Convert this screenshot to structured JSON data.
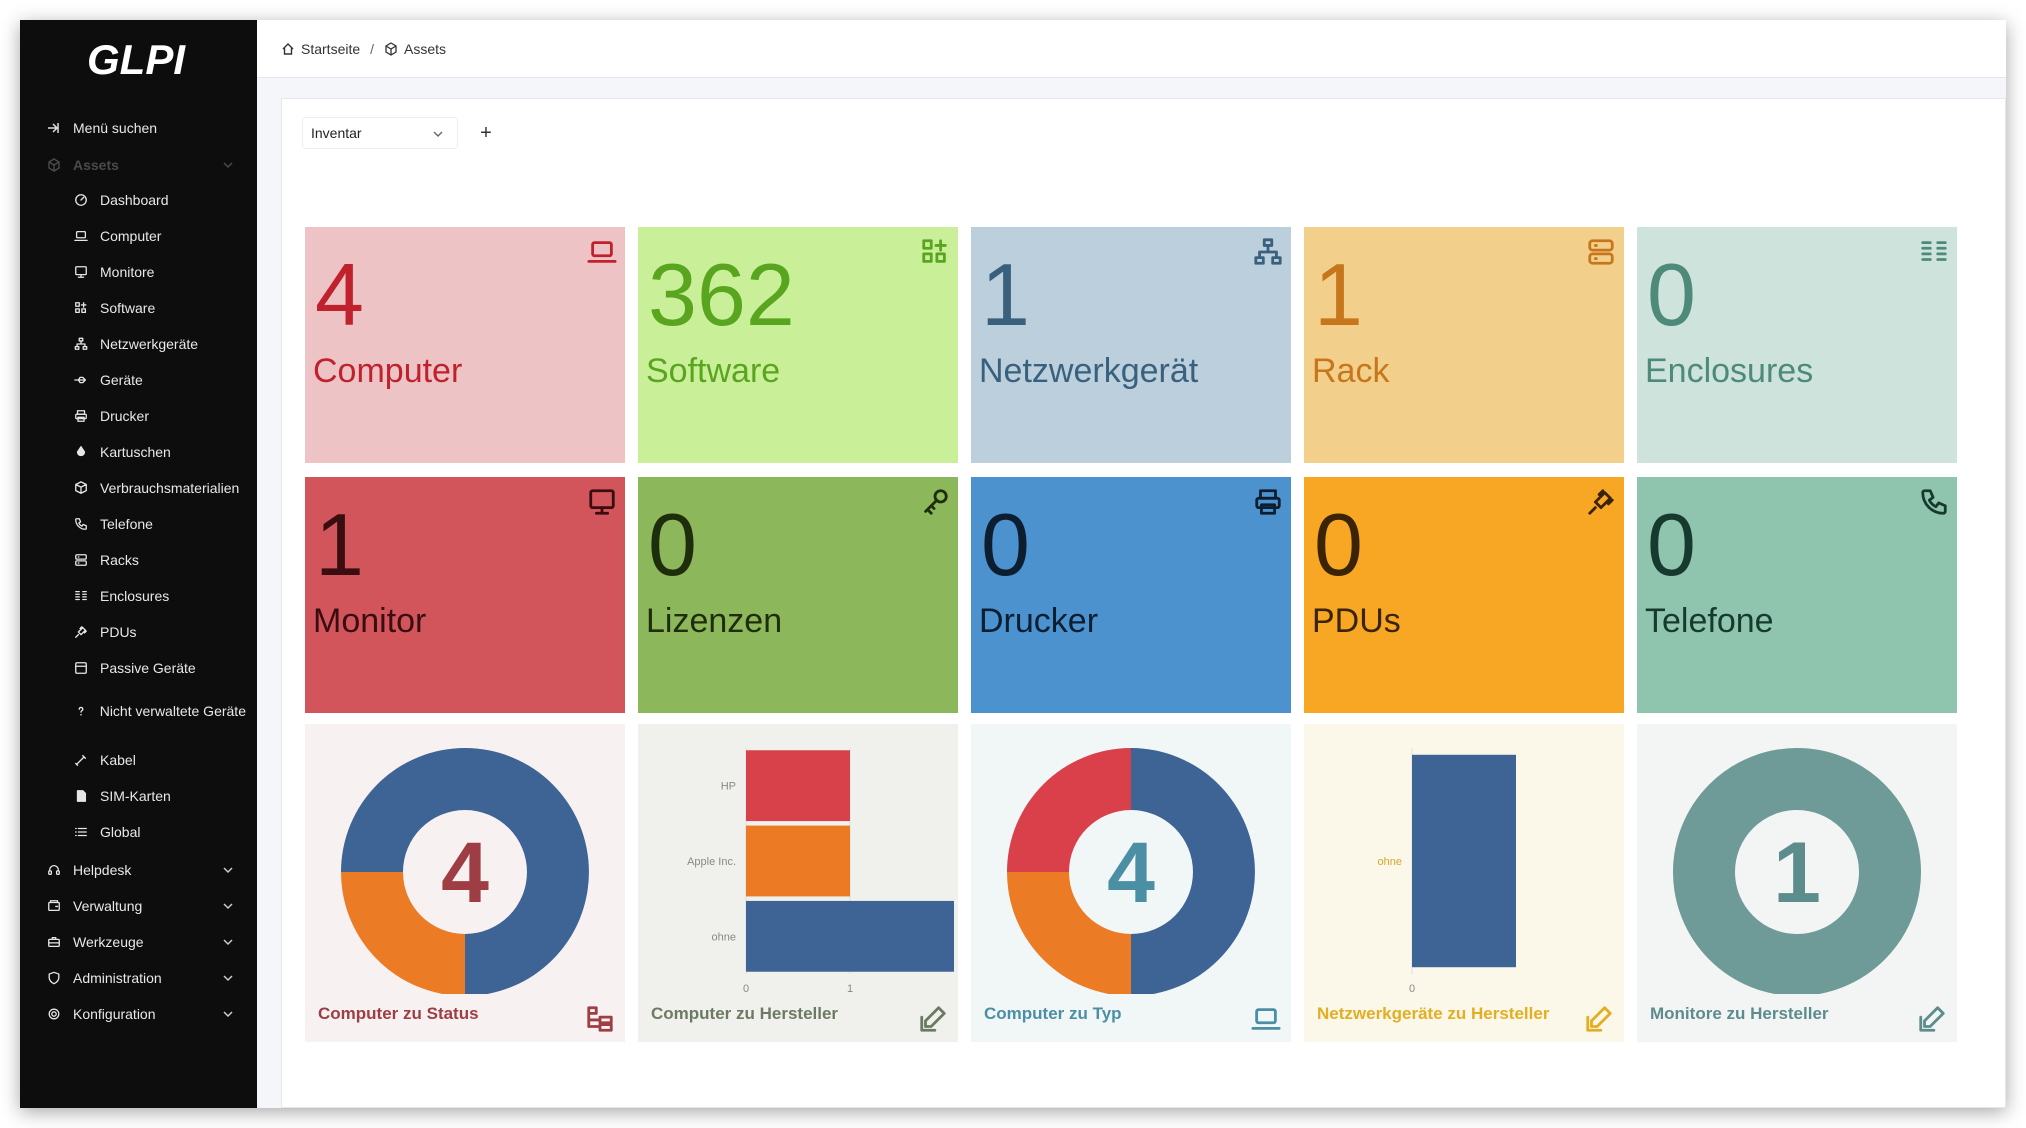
{
  "app": {
    "logo_text": "GLPI"
  },
  "sidebar": {
    "search_label": "Menü suchen",
    "assets_label": "Assets",
    "asset_items": [
      {
        "label": "Dashboard",
        "icon": "dashboard-icon"
      },
      {
        "label": "Computer",
        "icon": "laptop-icon"
      },
      {
        "label": "Monitore",
        "icon": "monitor-icon"
      },
      {
        "label": "Software",
        "icon": "apps-icon"
      },
      {
        "label": "Netzwerkgeräte",
        "icon": "network-icon"
      },
      {
        "label": "Geräte",
        "icon": "usb-icon"
      },
      {
        "label": "Drucker",
        "icon": "printer-icon"
      },
      {
        "label": "Kartuschen",
        "icon": "droplet-icon"
      },
      {
        "label": "Verbrauchsmaterialien",
        "icon": "package-icon"
      },
      {
        "label": "Telefone",
        "icon": "phone-icon"
      },
      {
        "label": "Racks",
        "icon": "server-icon"
      },
      {
        "label": "Enclosures",
        "icon": "columns-icon"
      },
      {
        "label": "PDUs",
        "icon": "plug-icon"
      },
      {
        "label": "Passive Geräte",
        "icon": "box-icon"
      },
      {
        "label": "Nicht verwaltete Geräte",
        "icon": "question-icon"
      },
      {
        "label": "Kabel",
        "icon": "cable-icon"
      },
      {
        "label": "SIM-Karten",
        "icon": "sim-icon"
      },
      {
        "label": "Global",
        "icon": "list-icon"
      }
    ],
    "sections": [
      {
        "label": "Helpdesk",
        "icon": "headset-icon"
      },
      {
        "label": "Verwaltung",
        "icon": "wallet-icon"
      },
      {
        "label": "Werkzeuge",
        "icon": "briefcase-icon"
      },
      {
        "label": "Administration",
        "icon": "shield-icon"
      },
      {
        "label": "Konfiguration",
        "icon": "settings-icon"
      }
    ]
  },
  "breadcrumb": {
    "home": "Startseite",
    "separator": "/",
    "current": "Assets"
  },
  "dashboard": {
    "selected": "Inventar",
    "add_symbol": "+"
  },
  "cards_row1": [
    {
      "value": "4",
      "label": "Computer",
      "bg": "#eec3c5",
      "fg": "#c0222d",
      "icon": "laptop-icon"
    },
    {
      "value": "362",
      "label": "Software",
      "bg": "#c9f099",
      "fg": "#5aa51f",
      "icon": "apps-icon"
    },
    {
      "value": "1",
      "label": "Netzwerkgerät",
      "bg": "#bccfdc",
      "fg": "#39607d",
      "icon": "network-icon"
    },
    {
      "value": "1",
      "label": "Rack",
      "bg": "#f3cf8c",
      "fg": "#c8761b",
      "icon": "server-icon"
    },
    {
      "value": "0",
      "label": "Enclosures",
      "bg": "#cde3db",
      "fg": "#4d8a7a",
      "icon": "columns-icon"
    }
  ],
  "cards_row2": [
    {
      "value": "1",
      "label": "Monitor",
      "bg": "#d2555c",
      "fg": "#3a0d10",
      "icon": "monitor-icon"
    },
    {
      "value": "0",
      "label": "Lizenzen",
      "bg": "#8cb75a",
      "fg": "#1e2e0c",
      "icon": "key-icon"
    },
    {
      "value": "0",
      "label": "Drucker",
      "bg": "#4b92cf",
      "fg": "#0c1e30",
      "icon": "printer-icon"
    },
    {
      "value": "0",
      "label": "PDUs",
      "bg": "#f8a724",
      "fg": "#3a2405",
      "icon": "plug-icon"
    },
    {
      "value": "0",
      "label": "Telefone",
      "bg": "#8fc4af",
      "fg": "#173a2f",
      "icon": "phone-icon"
    }
  ],
  "graph_cards": [
    {
      "title": "Computer zu Status",
      "bg": "#f8f1f1",
      "fg": "#9e3d43",
      "icon": "hierarchy-icon"
    },
    {
      "title": "Computer zu Hersteller",
      "bg": "#f0f1ec",
      "fg": "#6d7a63",
      "icon": "edit-icon"
    },
    {
      "title": "Computer zu Typ",
      "bg": "#f1f6f7",
      "fg": "#4b8fa5",
      "icon": "laptop-icon"
    },
    {
      "title": "Netzwerkgeräte zu Hersteller",
      "bg": "#fbf7e9",
      "fg": "#e3ae22",
      "icon": "edit-icon"
    },
    {
      "title": "Monitore zu Hersteller",
      "bg": "#f3f5f4",
      "fg": "#5d8c8c",
      "icon": "edit-icon"
    }
  ],
  "chart_data": [
    {
      "type": "pie",
      "title": "Computer zu Status",
      "center_label": "4",
      "values": [
        2,
        1,
        1
      ],
      "colors": [
        "#3e6395",
        "#eb7b25",
        "#3e6395"
      ]
    },
    {
      "type": "bar",
      "title": "Computer zu Hersteller",
      "orientation": "horizontal",
      "categories": [
        "HP",
        "Apple Inc.",
        "ohne"
      ],
      "values": [
        1,
        1,
        2
      ],
      "colors": [
        "#d8404a",
        "#ec7a24",
        "#3e6395"
      ],
      "x_ticks": [
        "0",
        "1"
      ]
    },
    {
      "type": "pie",
      "title": "Computer zu Typ",
      "center_label": "4",
      "values": [
        2,
        1,
        1
      ],
      "colors": [
        "#3e6395",
        "#eb7b25",
        "#d9404a"
      ]
    },
    {
      "type": "bar",
      "title": "Netzwerkgeräte zu Hersteller",
      "orientation": "horizontal",
      "categories": [
        "ohne"
      ],
      "values": [
        1
      ],
      "colors": [
        "#3e6395"
      ],
      "x_ticks": [
        "0"
      ]
    },
    {
      "type": "pie",
      "title": "Monitore zu Hersteller",
      "center_label": "1",
      "values": [
        1
      ],
      "colors": [
        "#6e9a97"
      ]
    }
  ]
}
